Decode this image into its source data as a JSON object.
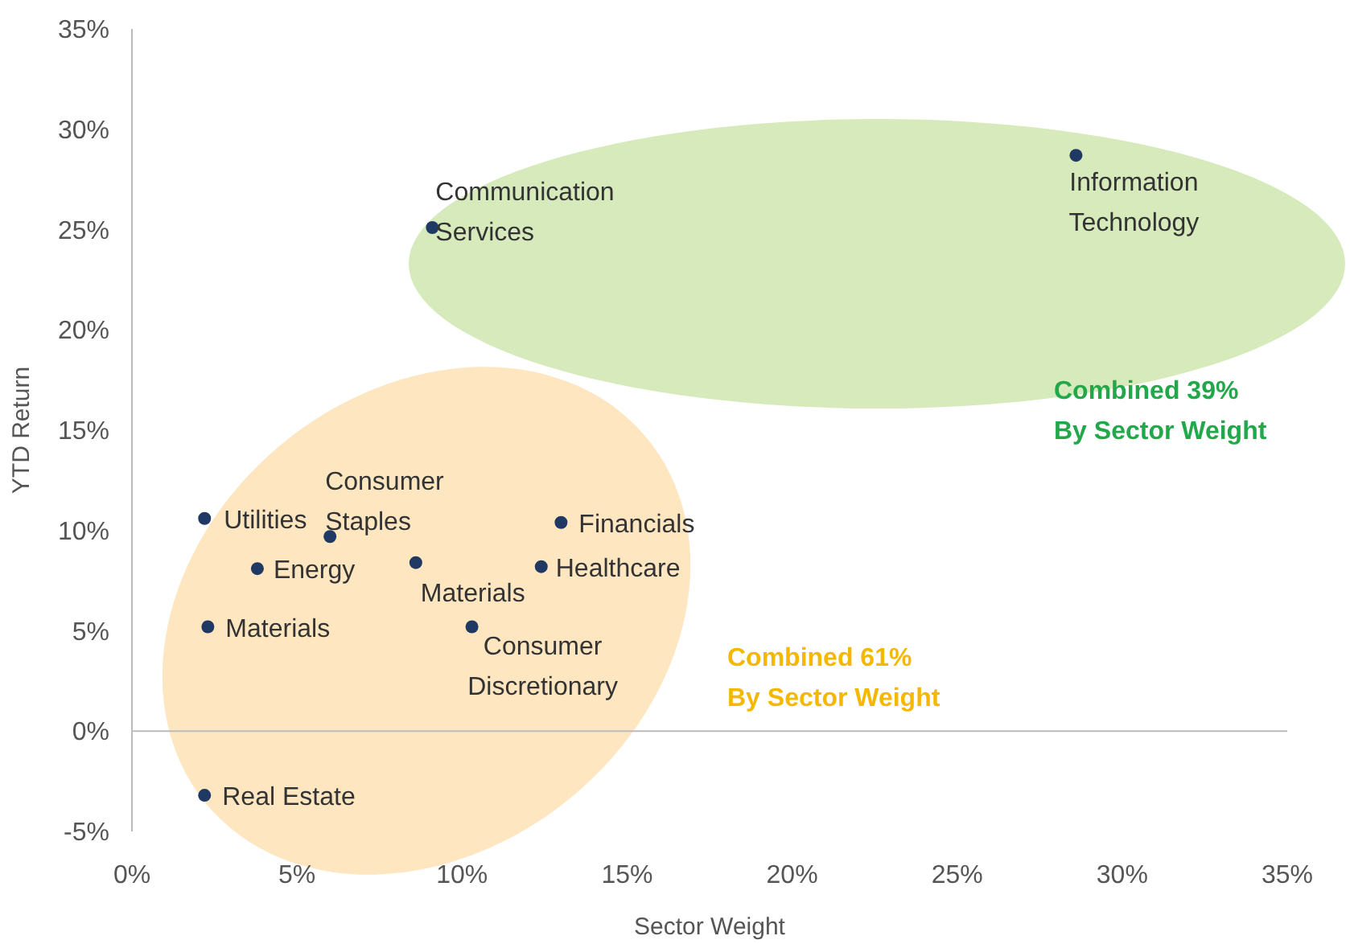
{
  "chart_data": {
    "type": "scatter",
    "xlabel": "Sector Weight",
    "ylabel": "YTD Return",
    "x": [
      28.6,
      9.1,
      2.2,
      6.0,
      3.8,
      8.6,
      13.0,
      12.4,
      2.3,
      10.3,
      2.2
    ],
    "values": [
      28.7,
      25.1,
      10.6,
      9.7,
      8.1,
      8.4,
      10.4,
      8.2,
      5.2,
      5.2,
      -3.2
    ],
    "color": "#1f3864",
    "marker": "circle",
    "ref_lines": [
      {
        "axis": "y",
        "value": 0,
        "color": "#bbbbbb"
      }
    ],
    "xlim": [
      0,
      35
    ],
    "xticks": [
      {
        "value": 0,
        "label": "0%"
      },
      {
        "value": 5,
        "label": "5%"
      },
      {
        "value": 10,
        "label": "10%"
      },
      {
        "value": 15,
        "label": "15%"
      },
      {
        "value": 20,
        "label": "20%"
      },
      {
        "value": 25,
        "label": "25%"
      },
      {
        "value": 30,
        "label": "30%"
      },
      {
        "value": 35,
        "label": "35%"
      }
    ],
    "ylim": [
      -5,
      35
    ],
    "yticks": [
      {
        "value": -5,
        "label": "-5%"
      },
      {
        "value": 0,
        "label": "0%"
      },
      {
        "value": 5,
        "label": "5%"
      },
      {
        "value": 10,
        "label": "10%"
      },
      {
        "value": 15,
        "label": "15%"
      },
      {
        "value": 20,
        "label": "20%"
      },
      {
        "value": 25,
        "label": "25%"
      },
      {
        "value": 30,
        "label": "30%"
      },
      {
        "value": 35,
        "label": "35%"
      }
    ],
    "annotations": [
      {
        "text": "Information\nTechnology",
        "x": 28.6,
        "y": 28.7
      },
      {
        "text": "Communication\nServices",
        "x": 9.1,
        "y": 25.1
      },
      {
        "text": "Utilities",
        "x": 2.2,
        "y": 10.6
      },
      {
        "text": "Consumer\nStaples",
        "x": 6.0,
        "y": 9.7
      },
      {
        "text": "Energy",
        "x": 3.8,
        "y": 8.1
      },
      {
        "text": "Materials",
        "x": 8.6,
        "y": 8.4
      },
      {
        "text": "Financials",
        "x": 13.0,
        "y": 10.4
      },
      {
        "text": "Healthcare",
        "x": 12.4,
        "y": 8.2
      },
      {
        "text": "Materials",
        "x": 2.3,
        "y": 5.2
      },
      {
        "text": "Consumer\nDiscretionary",
        "x": 10.3,
        "y": 5.2
      },
      {
        "text": "Real Estate",
        "x": 2.2,
        "y": -3.2
      },
      "Combined 39%\nBy Sector Weight",
      "Combined 61%\nBy Sector Weight"
    ]
  }
}
